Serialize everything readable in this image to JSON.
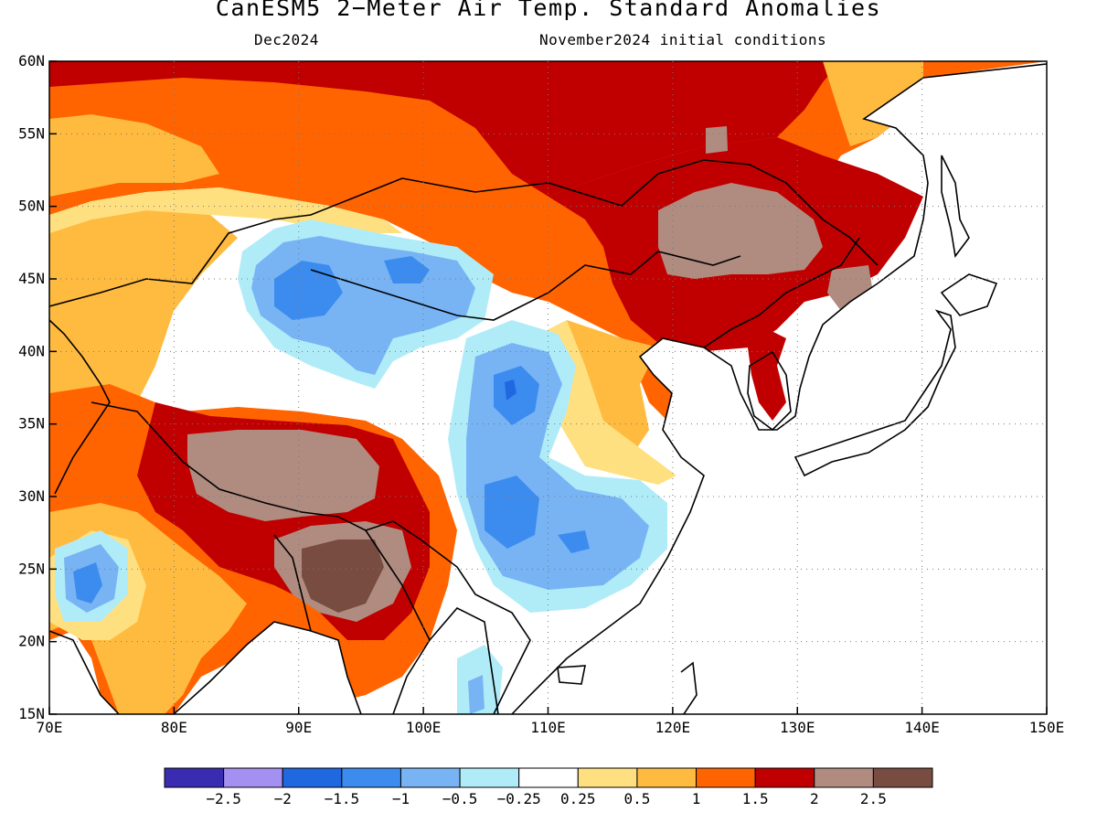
{
  "title": "CanESM5 2−Meter Air Temp. Standard Anomalies",
  "subtitle_left": "Dec2024",
  "subtitle_right": "November2024 initial conditions",
  "map": {
    "lon_range": [
      70,
      150
    ],
    "lat_range": [
      15,
      60
    ],
    "lon_ticks": [
      "70E",
      "80E",
      "90E",
      "100E",
      "110E",
      "120E",
      "130E",
      "140E",
      "150E"
    ],
    "lat_ticks": [
      "15N",
      "20N",
      "25N",
      "30N",
      "35N",
      "40N",
      "45N",
      "50N",
      "55N",
      "60N"
    ],
    "gridlines": "dotted",
    "land_outline_color": "#000000"
  },
  "colorbar": {
    "labels": [
      "−2.5",
      "−2",
      "−1.5",
      "−1",
      "−0.5",
      "−0.25",
      "0.25",
      "0.5",
      "1",
      "1.5",
      "2",
      "2.5"
    ],
    "colors": [
      "#3a2cb0",
      "#a390f0",
      "#2068e0",
      "#3c8cf0",
      "#78b4f4",
      "#b0ecf8",
      "#ffffff",
      "#ffe080",
      "#ffbb40",
      "#ff6400",
      "#c00000",
      "#b08c80",
      "#784c40"
    ]
  },
  "anomaly_regions": [
    {
      "name": "north-band",
      "lon": [
        70,
        150
      ],
      "lat": [
        55,
        60
      ],
      "level": "1.5 to 2"
    },
    {
      "name": "mongolia-nechina-core",
      "lon": [
        112,
        130
      ],
      "lat": [
        42,
        55
      ],
      "level": "2 to 2.5"
    },
    {
      "name": "tibet-core",
      "lon": [
        84,
        102
      ],
      "lat": [
        28,
        35
      ],
      "level": "2 to 2.5"
    },
    {
      "name": "xinjiang-cold",
      "lon": [
        84,
        104
      ],
      "lat": [
        39,
        49
      ],
      "level": "-1 to -1.5"
    },
    {
      "name": "central-china-cold",
      "lon": [
        104,
        118
      ],
      "lat": [
        23,
        40
      ],
      "level": "-1 to -1.5"
    },
    {
      "name": "india-west-cold",
      "lon": [
        71,
        77
      ],
      "lat": [
        21,
        26
      ],
      "level": "-1 to -1.5"
    }
  ]
}
